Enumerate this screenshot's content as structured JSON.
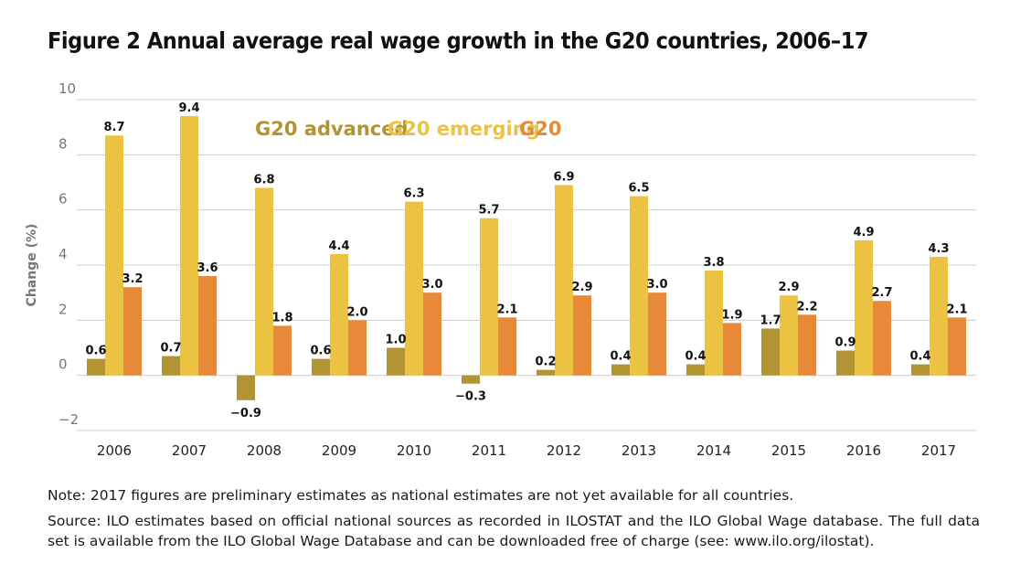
{
  "figure_title": "Figure 2  Annual average real wage growth in the G20 countries, 2006–17",
  "note": "Note: 2017 figures are preliminary estimates as national estimates are not yet available for all countries.",
  "source": "Source: ILO estimates based on official national sources as recorded in ILOSTAT and the ILO Global Wage database. The full data set is available from the ILO Global Wage Database and can be downloaded free of charge (see: www.ilo.org/ilostat).",
  "colors": {
    "advanced": "#b39433",
    "emerging": "#ecc243",
    "g20": "#e8893a",
    "grid": "#cccccc"
  },
  "chart_data": {
    "type": "bar",
    "ylabel": "Change (%)",
    "xlabel": "",
    "ylim": [
      -2,
      10
    ],
    "yticks": [
      -2,
      0,
      2,
      4,
      6,
      8,
      10
    ],
    "ytick_labels": [
      "−2",
      "0",
      "2",
      "4",
      "6",
      "8",
      "10"
    ],
    "grid": true,
    "legend_position": "top-center",
    "categories": [
      "2006",
      "2007",
      "2008",
      "2009",
      "2010",
      "2011",
      "2012",
      "2013",
      "2014",
      "2015",
      "2016",
      "2017"
    ],
    "series": [
      {
        "name": "G20 advanced",
        "values": [
          0.6,
          0.7,
          -0.9,
          0.6,
          1.0,
          -0.3,
          0.2,
          0.4,
          0.4,
          1.7,
          0.9,
          0.4
        ],
        "labels": [
          "0.6",
          "0.7",
          "−0.9",
          "0.6",
          "1.0",
          "−0.3",
          "0.2",
          "0.4",
          "0.4",
          "1.7",
          "0.9",
          "0.4"
        ]
      },
      {
        "name": "G20 emerging",
        "values": [
          8.7,
          9.4,
          6.8,
          4.4,
          6.3,
          5.7,
          6.9,
          6.5,
          3.8,
          2.9,
          4.9,
          4.3
        ],
        "labels": [
          "8.7",
          "9.4",
          "6.8",
          "4.4",
          "6.3",
          "5.7",
          "6.9",
          "6.5",
          "3.8",
          "2.9",
          "4.9",
          "4.3"
        ]
      },
      {
        "name": "G20",
        "values": [
          3.2,
          3.6,
          1.8,
          2.0,
          3.0,
          2.1,
          2.9,
          3.0,
          1.9,
          2.2,
          2.7,
          2.1
        ],
        "labels": [
          "3.2",
          "3.6",
          "1.8",
          "2.0",
          "3.0",
          "2.1",
          "2.9",
          "3.0",
          "1.9",
          "2.2",
          "2.7",
          "2.1"
        ]
      }
    ]
  }
}
